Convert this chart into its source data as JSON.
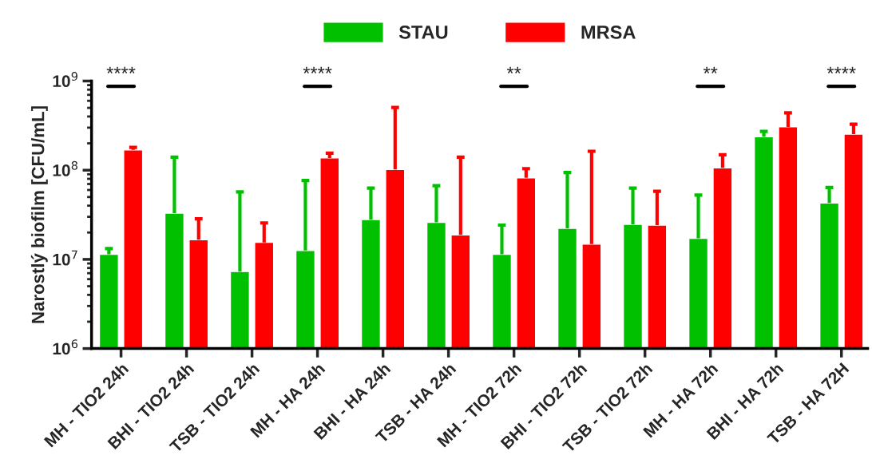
{
  "chart_data": {
    "type": "bar",
    "ylabel": "Narostlý biofilm [CFU/mL]",
    "categories": [
      "MH - TIO2 24h",
      "BHI - TIO2 24h",
      "TSB - TIO2 24h",
      "MH - HA 24h",
      "BHI - HA 24h",
      "TSB - HA 24h",
      "MH - TIO2 72h",
      "BHI - TIO2 72h",
      "TSB - TIO2 72h",
      "MH - HA 72h",
      "BHI - HA 72h",
      "TSB - HA 72H"
    ],
    "series": [
      {
        "name": "STAU",
        "color": "#00c000",
        "values": [
          11400000.0,
          33000000.0,
          7300000.0,
          12600000.0,
          28000000.0,
          26000000.0,
          11400000.0,
          22300000.0,
          24700000.0,
          17200000.0,
          237000000.0,
          42800000.0
        ],
        "errors": [
          [
            11400000.0,
            13200000.0
          ],
          [
            33000000.0,
            140000000.0
          ],
          [
            7300000.0,
            57000000.0
          ],
          [
            12600000.0,
            76500000.0
          ],
          [
            28000000.0,
            63000000.0
          ],
          [
            26000000.0,
            67000000.0
          ],
          [
            11400000.0,
            24200000.0
          ],
          [
            22300000.0,
            94000000.0
          ],
          [
            24700000.0,
            63000000.0
          ],
          [
            17200000.0,
            52500000.0
          ],
          [
            237000000.0,
            272000000.0
          ],
          [
            42800000.0,
            64000000.0
          ]
        ]
      },
      {
        "name": "MRSA",
        "color": "#ff0000",
        "values": [
          169000000.0,
          16600000.0,
          15500000.0,
          137000000.0,
          102000000.0,
          18800000.0,
          82000000.0,
          14800000.0,
          24200000.0,
          106000000.0,
          306000000.0,
          254000000.0
        ],
        "errors": [
          [
            169000000.0,
            180000000.0
          ],
          [
            16600000.0,
            28500000.0
          ],
          [
            15500000.0,
            25600000.0
          ],
          [
            137000000.0,
            155000000.0
          ],
          [
            102000000.0,
            505000000.0
          ],
          [
            18800000.0,
            140000000.0
          ],
          [
            82000000.0,
            104000000.0
          ],
          [
            14800000.0,
            163000000.0
          ],
          [
            24200000.0,
            58000000.0
          ],
          [
            106000000.0,
            149000000.0
          ],
          [
            306000000.0,
            440000000.0
          ],
          [
            254000000.0,
            327000000.0
          ]
        ]
      }
    ],
    "log": true,
    "ylim": [
      1000000.0,
      1000000000.0
    ],
    "yticks": [
      {
        "value": 1000000.0,
        "label": "10$^{6}$"
      },
      {
        "value": 10000000.0,
        "label": "10$^{7}$"
      },
      {
        "value": 100000000.0,
        "label": "10$^{8}$"
      },
      {
        "value": 1000000000.0,
        "label": "10$^{9}$"
      }
    ],
    "grid": false,
    "legend": "top",
    "annotations": [
      "****",
      "****",
      "**",
      "**",
      "****"
    ]
  }
}
